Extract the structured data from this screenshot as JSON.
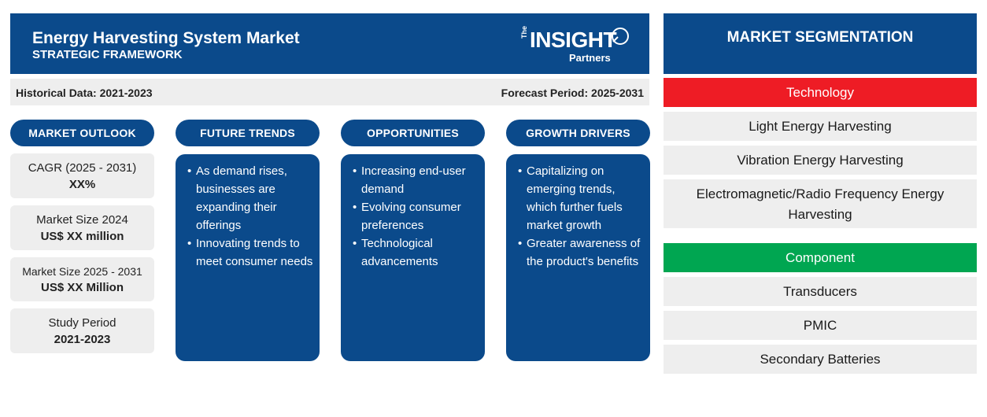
{
  "header": {
    "title": "Energy Harvesting System Market",
    "subtitle": "STRATEGIC FRAMEWORK",
    "logo": {
      "the": "The",
      "insight": "INSIGHT",
      "partners": "Partners"
    }
  },
  "period_bar": {
    "historical": "Historical Data: 2021-2023",
    "forecast": "Forecast Period: 2025-2031"
  },
  "columns": {
    "outlook": "MARKET OUTLOOK",
    "trends": "FUTURE TRENDS",
    "opportunities": "OPPORTUNITIES",
    "drivers": "GROWTH DRIVERS"
  },
  "outlook": [
    {
      "label": "CAGR (2025 - 2031)",
      "value": "XX%"
    },
    {
      "label": "Market Size 2024",
      "value": "US$ XX million"
    },
    {
      "label": "Market Size 2025 - 2031",
      "value": "US$ XX Million"
    },
    {
      "label": "Study Period",
      "value": "2021-2023"
    }
  ],
  "trends": [
    "As demand rises, businesses are expanding their offerings",
    "Innovating trends to meet consumer needs"
  ],
  "opportunities": [
    "Increasing end-user demand",
    "Evolving consumer preferences",
    "Technological advancements"
  ],
  "drivers": [
    "Capitalizing on emerging trends, which further fuels market growth",
    "Greater awareness of the product's benefits"
  ],
  "segmentation": {
    "title": "MARKET SEGMENTATION",
    "technology": {
      "label": "Technology",
      "items": [
        "Light Energy Harvesting",
        "Vibration Energy Harvesting",
        "Electromagnetic/Radio Frequency Energy Harvesting"
      ]
    },
    "component": {
      "label": "Component",
      "items": [
        "Transducers",
        "PMIC",
        "Secondary Batteries"
      ]
    }
  },
  "colors": {
    "brand_blue": "#0b4a8b",
    "technology_red": "#ee1c25",
    "component_green": "#00a651",
    "panel_gray": "#eeeeee"
  }
}
